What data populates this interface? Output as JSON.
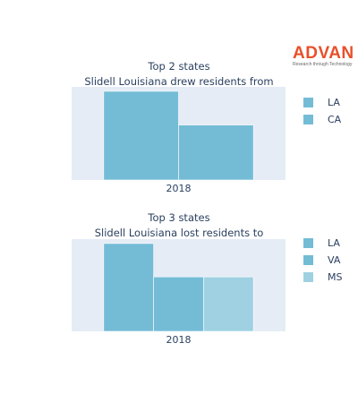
{
  "logo": {
    "word": "ADVAN",
    "tagline": "Research through Technology",
    "color": "#e8502a"
  },
  "colors": {
    "plot_bg": "#e5ecf6",
    "text": "#2a3f5f",
    "bar_dark": "#74bcd6",
    "bar_light": "#9fd1e2"
  },
  "chart_data": [
    {
      "type": "bar",
      "barmode": "group",
      "title": [
        "Top 2 states",
        "Slidell Louisiana drew residents from"
      ],
      "categories": [
        "2018"
      ],
      "series": [
        {
          "name": "LA",
          "values": [
            1.0
          ],
          "color": "#74bcd6"
        },
        {
          "name": "CA",
          "values": [
            0.62
          ],
          "color": "#74bcd6"
        }
      ],
      "y_axis_visible": false,
      "ylim": [
        0,
        1.05
      ],
      "legend": "right"
    },
    {
      "type": "bar",
      "barmode": "group",
      "title": [
        "Top 3 states",
        "Slidell Louisiana lost residents to"
      ],
      "categories": [
        "2018"
      ],
      "series": [
        {
          "name": "LA",
          "values": [
            1.0
          ],
          "color": "#74bcd6"
        },
        {
          "name": "VA",
          "values": [
            0.62
          ],
          "color": "#74bcd6"
        },
        {
          "name": "MS",
          "values": [
            0.62
          ],
          "color": "#9fd1e2"
        }
      ],
      "y_axis_visible": false,
      "ylim": [
        0,
        1.05
      ],
      "legend": "right"
    }
  ]
}
